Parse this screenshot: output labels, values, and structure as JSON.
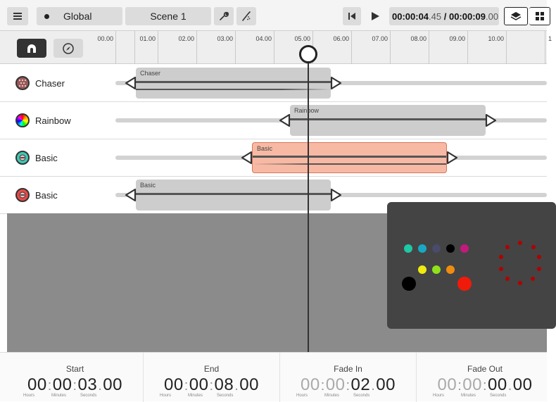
{
  "toolbar": {
    "global_label": "Global",
    "scene_label": "Scene 1",
    "time_current_main": "00:00:04",
    "time_current_frac": ".45",
    "time_separator": " / ",
    "time_total_main": "00:00:09",
    "time_total_frac": ".00",
    "icons": [
      "menu-icon",
      "wrench-icon",
      "brush-icon",
      "skip-back-icon",
      "play-icon",
      "layers-icon",
      "grid-icon"
    ]
  },
  "ruler": {
    "ticks": [
      "00.00",
      "01.00",
      "02.00",
      "03.00",
      "04.00",
      "05.00",
      "06.00",
      "07.00",
      "08.00",
      "09.00",
      "10.00",
      "1"
    ]
  },
  "tracks": [
    {
      "name": "Chaser",
      "clip_label": "Chaser",
      "icon": "chaser-icon"
    },
    {
      "name": "Rainbow",
      "clip_label": "Rainbow",
      "icon": "rainbow-icon"
    },
    {
      "name": "Basic",
      "clip_label": "Basic",
      "icon": "basic-icon"
    },
    {
      "name": "Basic",
      "clip_label": "Basic",
      "icon": "basic-icon"
    }
  ],
  "bottom": {
    "start": {
      "title": "Start",
      "h": "00",
      "m": "00",
      "s": "03",
      "f": "00"
    },
    "end": {
      "title": "End",
      "h": "00",
      "m": "00",
      "s": "08",
      "f": "00"
    },
    "fade_in": {
      "title": "Fade In",
      "h": "00",
      "m": "00",
      "s": "02",
      "f": "00"
    },
    "fade_out": {
      "title": "Fade Out",
      "h": "00",
      "m": "00",
      "s": "00",
      "f": "00"
    },
    "unit_hours": "Hours",
    "unit_minutes": "Minutes",
    "unit_seconds": "Seconds"
  },
  "colors": {
    "active_clip": "#f7b9a4",
    "stage": "#8b8b8b",
    "preview": "#444444"
  }
}
